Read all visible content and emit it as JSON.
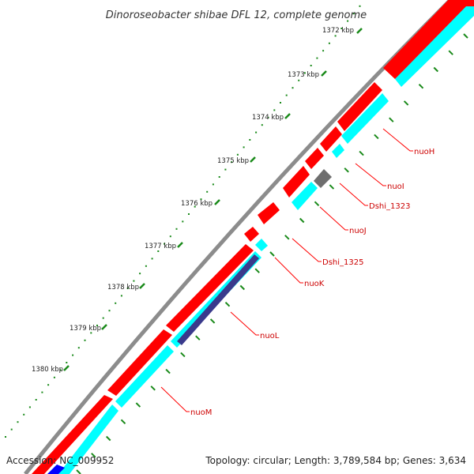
{
  "title": "Dinoroseobacter shibae DFL 12, complete genome",
  "footer": {
    "accession": "Accession: NC_009952",
    "summary": "Topology: circular; Length: 3,789,584 bp; Genes: 3,634"
  },
  "colors": {
    "backbone": "#8c8c8c",
    "forward_gene": "#ff0000",
    "reverse_gene": "#00ffff",
    "other_feature": "#6e6e6e",
    "long_feature": "#3a3a8c",
    "tick_major": "#1a8a1a",
    "label_line": "#ff0000",
    "label_text": "#cc0000",
    "bottom_blue": "#0000ff"
  },
  "scale": {
    "unit": "kbp",
    "labels": [
      "1372 kbp",
      "1373 kbp",
      "1374 kbp",
      "1375 kbp",
      "1376 kbp",
      "1377 kbp",
      "1378 kbp",
      "1379 kbp",
      "1380 kbp"
    ]
  },
  "gene_labels": [
    "nuoH",
    "nuoI",
    "Dshi_1323",
    "nuoJ",
    "Dshi_1325",
    "nuoK",
    "nuoL",
    "nuoM"
  ]
}
